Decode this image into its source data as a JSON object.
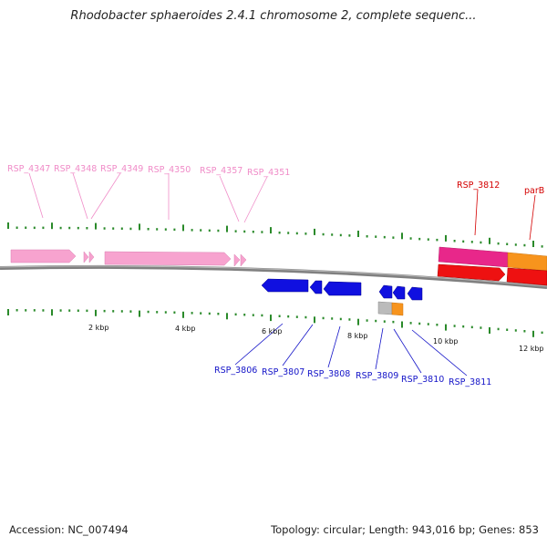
{
  "header": {
    "title": "Rhodobacter sphaeroides 2.4.1 chromosome 2, complete sequenc..."
  },
  "footer": {
    "accession": "Accession: NC_007494",
    "summary": "Topology: circular; Length: 943,016 bp; Genes: 853"
  },
  "colors": {
    "pink_gene": "#f7a3cf",
    "magenta_gene": "#e8278a",
    "orange_gene": "#f7941d",
    "red_gene": "#ee1111",
    "blue_gene": "#1010e0",
    "gray_gene": "#bbbbbb",
    "tick_green": "#2a8a2a",
    "backbone": "#808080"
  },
  "scale_labels": [
    "2 kbp",
    "4 kbp",
    "6 kbp",
    "8 kbp",
    "10 kbp",
    "12 kbp"
  ],
  "genes": {
    "pink": [
      "RSP_4347",
      "RSP_4348",
      "RSP_4349",
      "RSP_4350",
      "RSP_4357",
      "RSP_4351"
    ],
    "red": [
      "RSP_3812",
      "parB"
    ],
    "blue": [
      "RSP_3806",
      "RSP_3807",
      "RSP_3808",
      "RSP_3809",
      "RSP_3810",
      "RSP_3811"
    ]
  }
}
